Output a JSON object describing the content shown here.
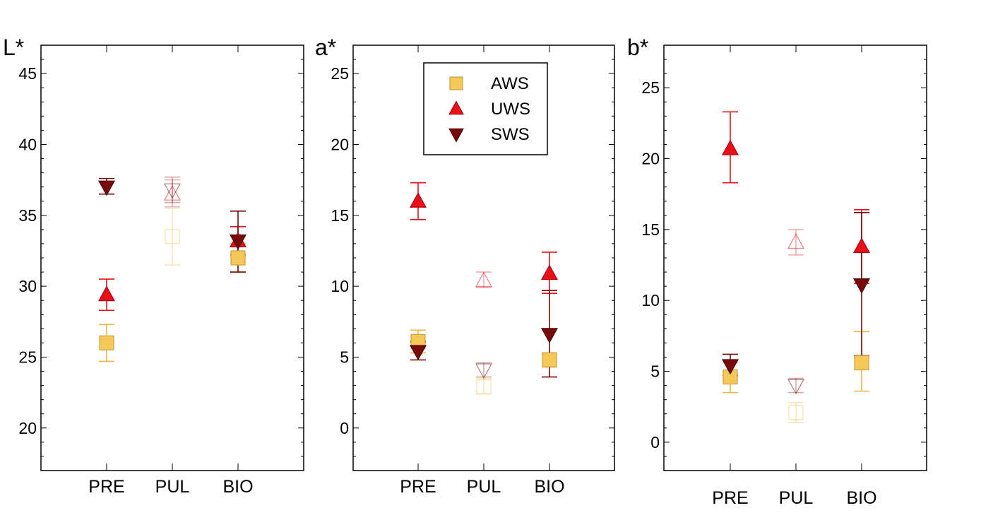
{
  "chart_data": [
    {
      "type": "scatter",
      "ylabel": "L*",
      "categories": [
        "PRE",
        "PUL",
        "BIO"
      ],
      "ylim": [
        17,
        47
      ],
      "yticks": [
        20,
        25,
        30,
        35,
        40,
        45
      ],
      "series": [
        {
          "name": "AWS",
          "values": [
            26.0,
            33.5,
            32.0
          ],
          "error_low": [
            24.7,
            31.5,
            31.0
          ],
          "error_high": [
            27.3,
            35.5,
            33.0
          ]
        },
        {
          "name": "UWS",
          "values": [
            29.4,
            36.5,
            33.2
          ],
          "error_low": [
            28.3,
            35.6,
            32.2
          ],
          "error_high": [
            30.5,
            37.5,
            34.2
          ]
        },
        {
          "name": "SWS",
          "values": [
            37.0,
            36.8,
            33.2
          ],
          "error_low": [
            36.5,
            35.9,
            31.0
          ],
          "error_high": [
            37.6,
            37.7,
            35.3
          ]
        }
      ],
      "emphasis": [
        true,
        false,
        true
      ]
    },
    {
      "type": "scatter",
      "ylabel": "a*",
      "categories": [
        "PRE",
        "PUL",
        "BIO"
      ],
      "ylim": [
        -3,
        27
      ],
      "yticks": [
        0,
        5,
        10,
        15,
        20,
        25
      ],
      "series": [
        {
          "name": "AWS",
          "values": [
            6.1,
            2.9,
            4.8
          ],
          "error_low": [
            5.3,
            2.4,
            4.3
          ],
          "error_high": [
            6.9,
            3.5,
            5.3
          ]
        },
        {
          "name": "UWS",
          "values": [
            16.0,
            10.4,
            10.9
          ],
          "error_low": [
            14.7,
            9.9,
            9.5
          ],
          "error_high": [
            17.3,
            11.0,
            12.4
          ]
        },
        {
          "name": "SWS",
          "values": [
            5.4,
            4.1,
            6.6
          ],
          "error_low": [
            4.8,
            3.6,
            3.6
          ],
          "error_high": [
            6.1,
            4.6,
            9.7
          ]
        }
      ],
      "emphasis": [
        true,
        false,
        true
      ]
    },
    {
      "type": "scatter",
      "ylabel": "b*",
      "categories": [
        "PRE",
        "PUL",
        "BIO"
      ],
      "ylim": [
        -2,
        28
      ],
      "yticks": [
        0,
        5,
        10,
        15,
        20,
        25
      ],
      "series": [
        {
          "name": "AWS",
          "values": [
            4.6,
            2.1,
            5.6
          ],
          "error_low": [
            3.5,
            1.4,
            3.6
          ],
          "error_high": [
            5.6,
            2.8,
            7.8
          ]
        },
        {
          "name": "UWS",
          "values": [
            20.7,
            14.1,
            13.8
          ],
          "error_low": [
            18.3,
            13.2,
            11.2
          ],
          "error_high": [
            23.3,
            15.0,
            16.4
          ]
        },
        {
          "name": "SWS",
          "values": [
            5.4,
            4.0,
            11.1
          ],
          "error_low": [
            4.7,
            3.5,
            6.1
          ],
          "error_high": [
            6.2,
            4.5,
            16.2
          ]
        }
      ],
      "emphasis": [
        true,
        false,
        true
      ]
    }
  ],
  "legend": {
    "placement": "top-center of middle panel",
    "items": [
      {
        "name": "AWS",
        "marker": "square",
        "color": "#F5C85A",
        "stroke": "#C9A040"
      },
      {
        "name": "UWS",
        "marker": "triangle-up",
        "color": "#E8111A",
        "stroke": "#B00010"
      },
      {
        "name": "SWS",
        "marker": "triangle-down",
        "color": "#7A0A0A",
        "stroke": "#4A0505"
      }
    ]
  }
}
